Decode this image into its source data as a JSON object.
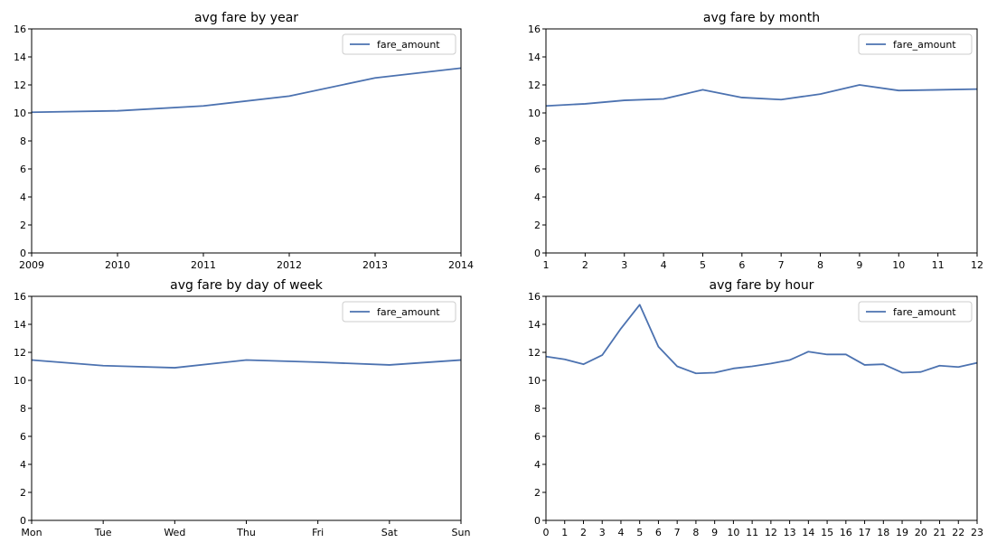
{
  "colors": {
    "series": "#4c72b0",
    "axes": "#000000",
    "legend_border": "#cccccc",
    "background": "#ffffff"
  },
  "chart_data": [
    {
      "type": "line",
      "title": "avg fare by year",
      "xlabel": "",
      "ylabel": "",
      "x": [
        2009,
        2010,
        2011,
        2012,
        2013,
        2014
      ],
      "x_tick_labels": [
        "2009",
        "2010",
        "2011",
        "2012",
        "2013",
        "2014"
      ],
      "xlim": [
        2009,
        2014
      ],
      "ylim": [
        0,
        16
      ],
      "y_ticks": [
        0,
        2,
        4,
        6,
        8,
        10,
        12,
        14,
        16
      ],
      "y_tick_labels": [
        "0",
        "2",
        "4",
        "6",
        "8",
        "10",
        "12",
        "14",
        "16"
      ],
      "grid": false,
      "legend_position": "upper right",
      "series": [
        {
          "name": "fare_amount",
          "x": [
            2009,
            2010,
            2011,
            2012,
            2013,
            2014
          ],
          "values": [
            10.05,
            10.15,
            10.5,
            11.2,
            12.5,
            13.2
          ]
        }
      ]
    },
    {
      "type": "line",
      "title": "avg fare by month",
      "xlabel": "",
      "ylabel": "",
      "x": [
        1,
        2,
        3,
        4,
        5,
        6,
        7,
        8,
        9,
        10,
        11,
        12
      ],
      "x_tick_labels": [
        "1",
        "2",
        "3",
        "4",
        "5",
        "6",
        "7",
        "8",
        "9",
        "10",
        "11",
        "12"
      ],
      "xlim": [
        1,
        12
      ],
      "ylim": [
        0,
        16
      ],
      "y_ticks": [
        0,
        2,
        4,
        6,
        8,
        10,
        12,
        14,
        16
      ],
      "y_tick_labels": [
        "0",
        "2",
        "4",
        "6",
        "8",
        "10",
        "12",
        "14",
        "16"
      ],
      "grid": false,
      "legend_position": "upper right",
      "series": [
        {
          "name": "fare_amount",
          "x": [
            1,
            2,
            3,
            4,
            5,
            6,
            7,
            8,
            9,
            10,
            11,
            12
          ],
          "values": [
            10.5,
            10.65,
            10.9,
            11.0,
            11.65,
            11.1,
            10.95,
            11.35,
            12.0,
            11.6,
            11.65,
            11.7
          ]
        }
      ]
    },
    {
      "type": "line",
      "title": "avg fare by day of week",
      "xlabel": "",
      "ylabel": "",
      "x": [
        "Mon",
        "Tue",
        "Wed",
        "Thu",
        "Fri",
        "Sat",
        "Sun"
      ],
      "x_tick_labels": [
        "Mon",
        "Tue",
        "Wed",
        "Thu",
        "Fri",
        "Sat",
        "Sun"
      ],
      "ylim": [
        0,
        16
      ],
      "y_ticks": [
        0,
        2,
        4,
        6,
        8,
        10,
        12,
        14,
        16
      ],
      "y_tick_labels": [
        "0",
        "2",
        "4",
        "6",
        "8",
        "10",
        "12",
        "14",
        "16"
      ],
      "grid": false,
      "legend_position": "upper right",
      "series": [
        {
          "name": "fare_amount",
          "x": [
            "Mon",
            "Tue",
            "Wed",
            "Thu",
            "Fri",
            "Sat",
            "Sun"
          ],
          "values": [
            11.45,
            11.05,
            10.9,
            11.45,
            11.3,
            11.1,
            11.45
          ]
        }
      ]
    },
    {
      "type": "line",
      "title": "avg fare by hour",
      "xlabel": "",
      "ylabel": "",
      "x": [
        0,
        1,
        2,
        3,
        4,
        5,
        6,
        7,
        8,
        9,
        10,
        11,
        12,
        13,
        14,
        15,
        16,
        17,
        18,
        19,
        20,
        21,
        22,
        23
      ],
      "x_tick_labels": [
        "0",
        "1",
        "2",
        "3",
        "4",
        "5",
        "6",
        "7",
        "8",
        "9",
        "10",
        "11",
        "12",
        "13",
        "14",
        "15",
        "16",
        "17",
        "18",
        "19",
        "20",
        "21",
        "22",
        "23"
      ],
      "xlim": [
        0,
        23
      ],
      "ylim": [
        0,
        16
      ],
      "y_ticks": [
        0,
        2,
        4,
        6,
        8,
        10,
        12,
        14,
        16
      ],
      "y_tick_labels": [
        "0",
        "2",
        "4",
        "6",
        "8",
        "10",
        "12",
        "14",
        "16"
      ],
      "grid": false,
      "legend_position": "upper right",
      "series": [
        {
          "name": "fare_amount",
          "x": [
            0,
            1,
            2,
            3,
            4,
            5,
            6,
            7,
            8,
            9,
            10,
            11,
            12,
            13,
            14,
            15,
            16,
            17,
            18,
            19,
            20,
            21,
            22,
            23
          ],
          "values": [
            11.7,
            11.5,
            11.15,
            11.8,
            13.7,
            15.4,
            12.4,
            11.0,
            10.5,
            10.55,
            10.85,
            11.0,
            11.2,
            11.45,
            12.05,
            11.85,
            11.85,
            11.1,
            11.15,
            10.55,
            10.6,
            11.05,
            10.95,
            11.25
          ]
        }
      ]
    }
  ]
}
